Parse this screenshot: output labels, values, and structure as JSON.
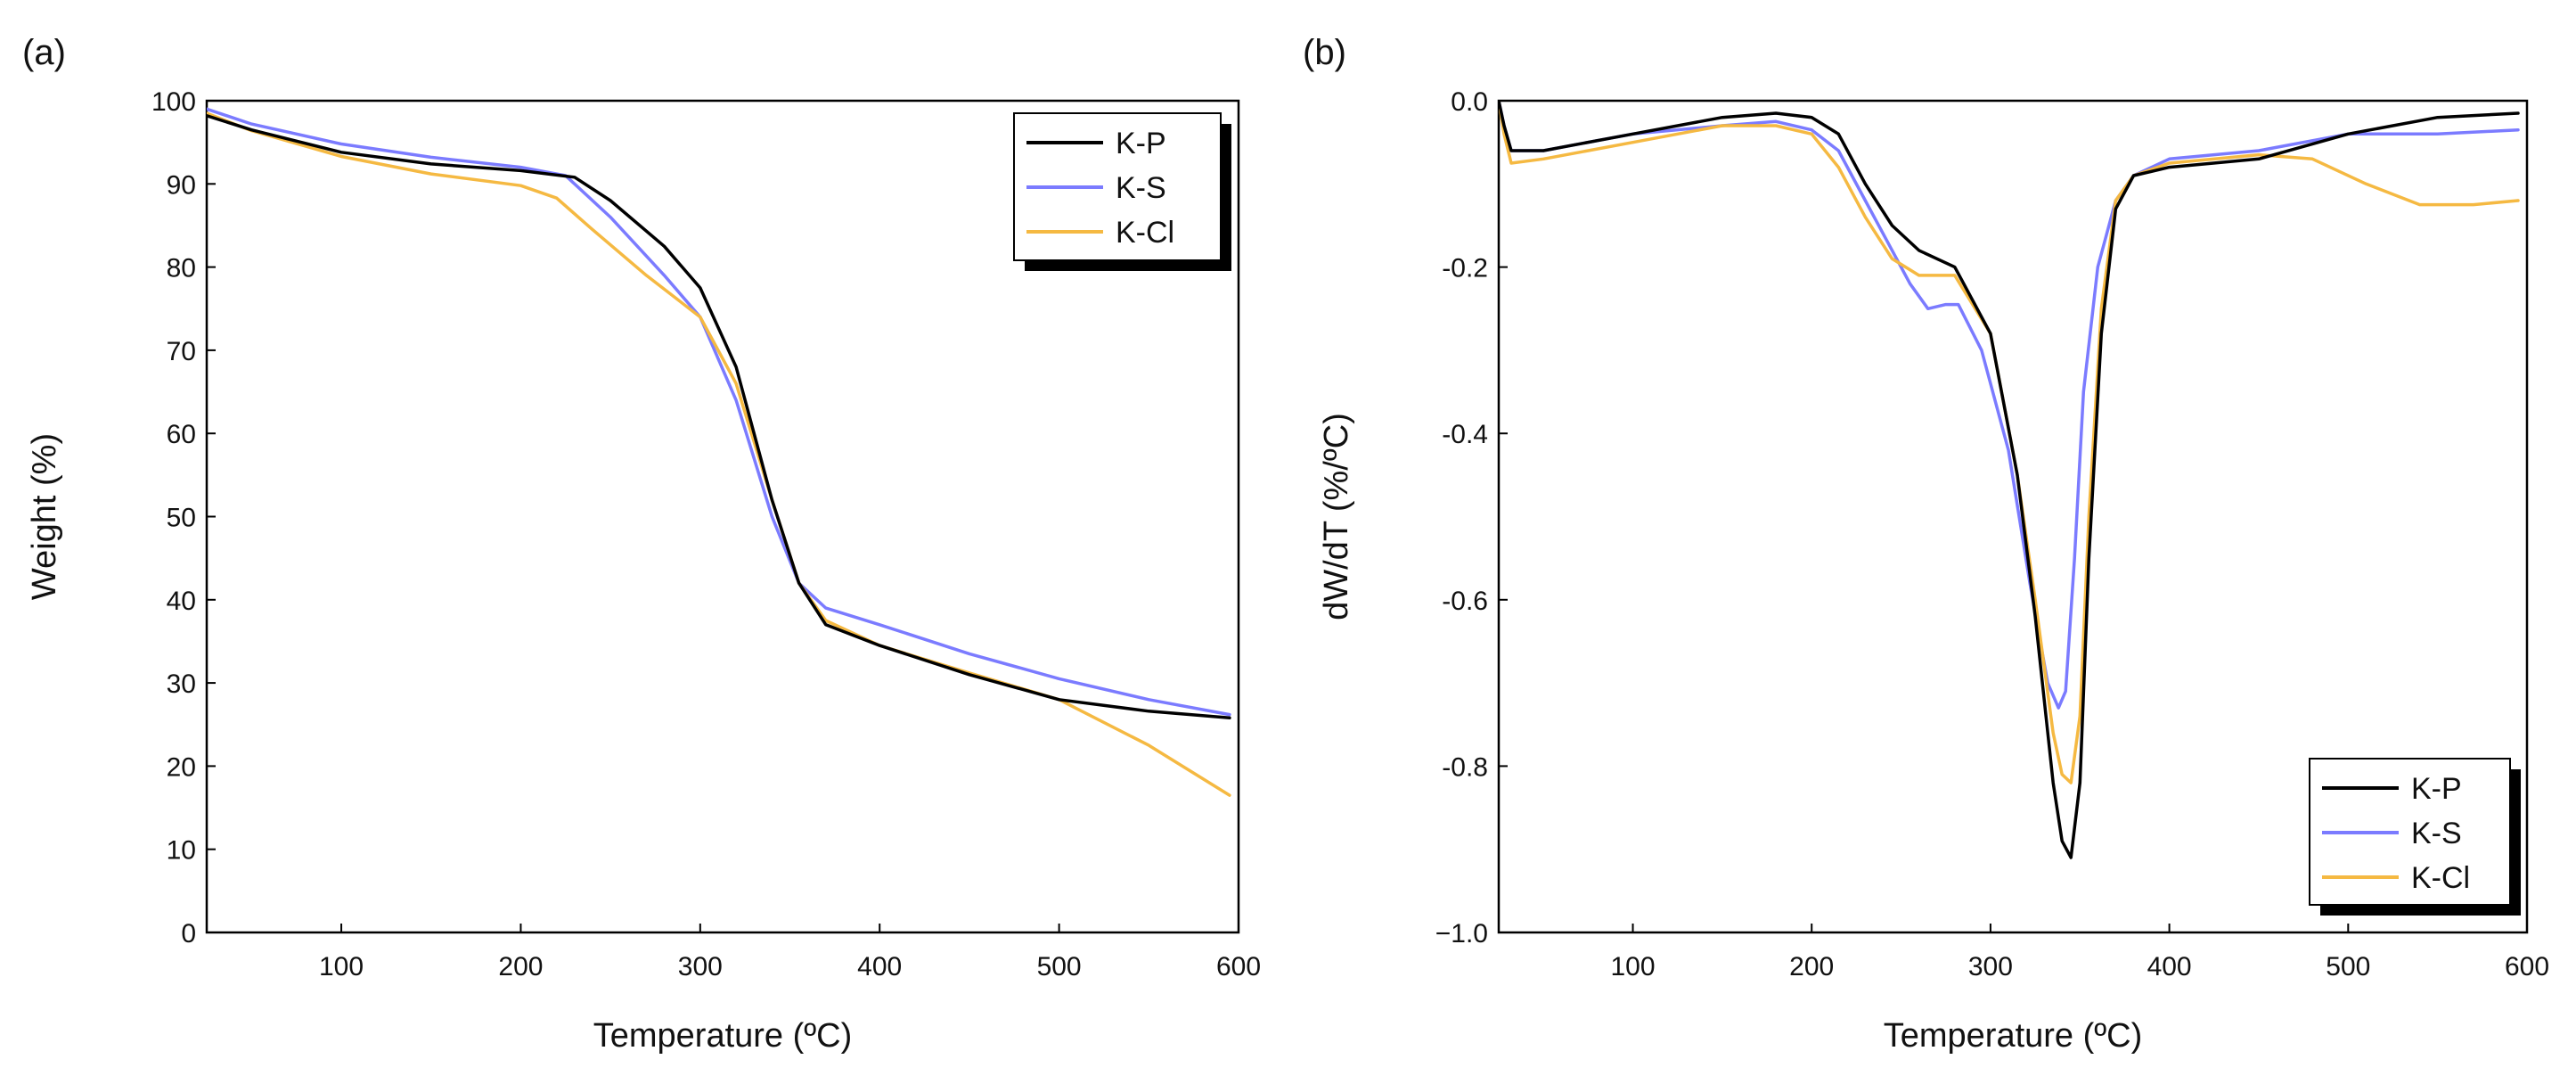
{
  "chart_data": [
    {
      "panel_label": "(a)",
      "type": "line",
      "title": "",
      "xlabel": "Temperature (ºC)",
      "ylabel": "Weight (%)",
      "xlim": [
        25,
        600
      ],
      "ylim": [
        0,
        100
      ],
      "xticks": [
        100,
        200,
        300,
        400,
        500,
        600
      ],
      "yticks": [
        0,
        10,
        20,
        30,
        40,
        50,
        60,
        70,
        80,
        90,
        100
      ],
      "xtick_labels": [
        "100",
        "200",
        "300",
        "400",
        "500",
        "600"
      ],
      "ytick_labels": [
        "0",
        "10",
        "20",
        "30",
        "40",
        "50",
        "60",
        "70",
        "80",
        "90",
        "100"
      ],
      "grid": false,
      "legend_position": "top-right",
      "series": [
        {
          "name": "K-P",
          "color": "#000000",
          "x": [
            25,
            50,
            100,
            150,
            200,
            230,
            250,
            280,
            300,
            320,
            340,
            355,
            370,
            400,
            450,
            500,
            550,
            595
          ],
          "y": [
            98.2,
            96.5,
            93.8,
            92.4,
            91.6,
            90.8,
            88,
            82.5,
            77.5,
            68,
            52,
            42,
            37,
            34.5,
            31,
            28,
            26.6,
            25.8
          ]
        },
        {
          "name": "K-S",
          "color": "#7b7bff",
          "x": [
            25,
            50,
            100,
            150,
            200,
            225,
            250,
            280,
            300,
            320,
            340,
            355,
            370,
            400,
            450,
            500,
            550,
            595
          ],
          "y": [
            99,
            97.2,
            94.8,
            93.2,
            92,
            91,
            86,
            79,
            74,
            64,
            50,
            42,
            39,
            37,
            33.5,
            30.5,
            28,
            26.2
          ]
        },
        {
          "name": "K-Cl",
          "color": "#f5b942",
          "x": [
            25,
            50,
            100,
            150,
            200,
            220,
            240,
            270,
            300,
            320,
            340,
            355,
            370,
            400,
            450,
            500,
            550,
            595
          ],
          "y": [
            98.5,
            96.4,
            93.3,
            91.2,
            89.8,
            88.3,
            84.5,
            79,
            74,
            66,
            52,
            42,
            37.5,
            34.5,
            31.2,
            28,
            22.5,
            16.5
          ]
        }
      ]
    },
    {
      "panel_label": "(b)",
      "type": "line",
      "title": "",
      "xlabel": "Temperature (ºC)",
      "ylabel": "dW/dT (%/ºC)",
      "xlim": [
        25,
        600
      ],
      "ylim": [
        -1.0,
        0.0
      ],
      "xticks": [
        100,
        200,
        300,
        400,
        500,
        600
      ],
      "yticks": [
        0.0,
        -0.2,
        -0.4,
        -0.6,
        -0.8,
        -1.0
      ],
      "xtick_labels": [
        "100",
        "200",
        "300",
        "400",
        "500",
        "600"
      ],
      "ytick_labels": [
        "0.0",
        "-0.2",
        "-0.4",
        "-0.6",
        "-0.8",
        "−1.0"
      ],
      "grid": false,
      "legend_position": "bottom-right",
      "series": [
        {
          "name": "K-P",
          "color": "#000000",
          "x": [
            25,
            28,
            32,
            50,
            100,
            150,
            180,
            200,
            215,
            230,
            245,
            260,
            280,
            300,
            315,
            325,
            335,
            340,
            345,
            350,
            355,
            362,
            370,
            380,
            400,
            450,
            500,
            550,
            595
          ],
          "y": [
            0.0,
            -0.03,
            -0.06,
            -0.06,
            -0.04,
            -0.02,
            -0.015,
            -0.02,
            -0.04,
            -0.1,
            -0.15,
            -0.18,
            -0.2,
            -0.28,
            -0.45,
            -0.62,
            -0.82,
            -0.89,
            -0.91,
            -0.82,
            -0.55,
            -0.28,
            -0.13,
            -0.09,
            -0.08,
            -0.07,
            -0.04,
            -0.02,
            -0.015
          ]
        },
        {
          "name": "K-S",
          "color": "#7b7bff",
          "x": [
            25,
            28,
            32,
            50,
            100,
            150,
            180,
            200,
            215,
            230,
            245,
            255,
            265,
            275,
            282,
            295,
            310,
            322,
            332,
            338,
            342,
            347,
            352,
            360,
            370,
            380,
            400,
            450,
            500,
            550,
            595
          ],
          "y": [
            0.0,
            -0.03,
            -0.06,
            -0.06,
            -0.04,
            -0.03,
            -0.025,
            -0.035,
            -0.06,
            -0.12,
            -0.18,
            -0.22,
            -0.25,
            -0.245,
            -0.245,
            -0.3,
            -0.42,
            -0.58,
            -0.7,
            -0.73,
            -0.71,
            -0.55,
            -0.35,
            -0.2,
            -0.12,
            -0.09,
            -0.07,
            -0.06,
            -0.04,
            -0.04,
            -0.035
          ]
        },
        {
          "name": "K-Cl",
          "color": "#f5b942",
          "x": [
            25,
            28,
            32,
            50,
            100,
            150,
            180,
            200,
            215,
            230,
            245,
            260,
            280,
            300,
            315,
            325,
            335,
            340,
            345,
            350,
            355,
            362,
            370,
            380,
            400,
            450,
            480,
            510,
            540,
            570,
            595
          ],
          "y": [
            0.0,
            -0.04,
            -0.075,
            -0.07,
            -0.05,
            -0.03,
            -0.03,
            -0.04,
            -0.08,
            -0.14,
            -0.19,
            -0.21,
            -0.21,
            -0.28,
            -0.45,
            -0.6,
            -0.76,
            -0.81,
            -0.82,
            -0.74,
            -0.5,
            -0.25,
            -0.12,
            -0.09,
            -0.075,
            -0.065,
            -0.07,
            -0.1,
            -0.125,
            -0.125,
            -0.12
          ]
        }
      ]
    }
  ]
}
